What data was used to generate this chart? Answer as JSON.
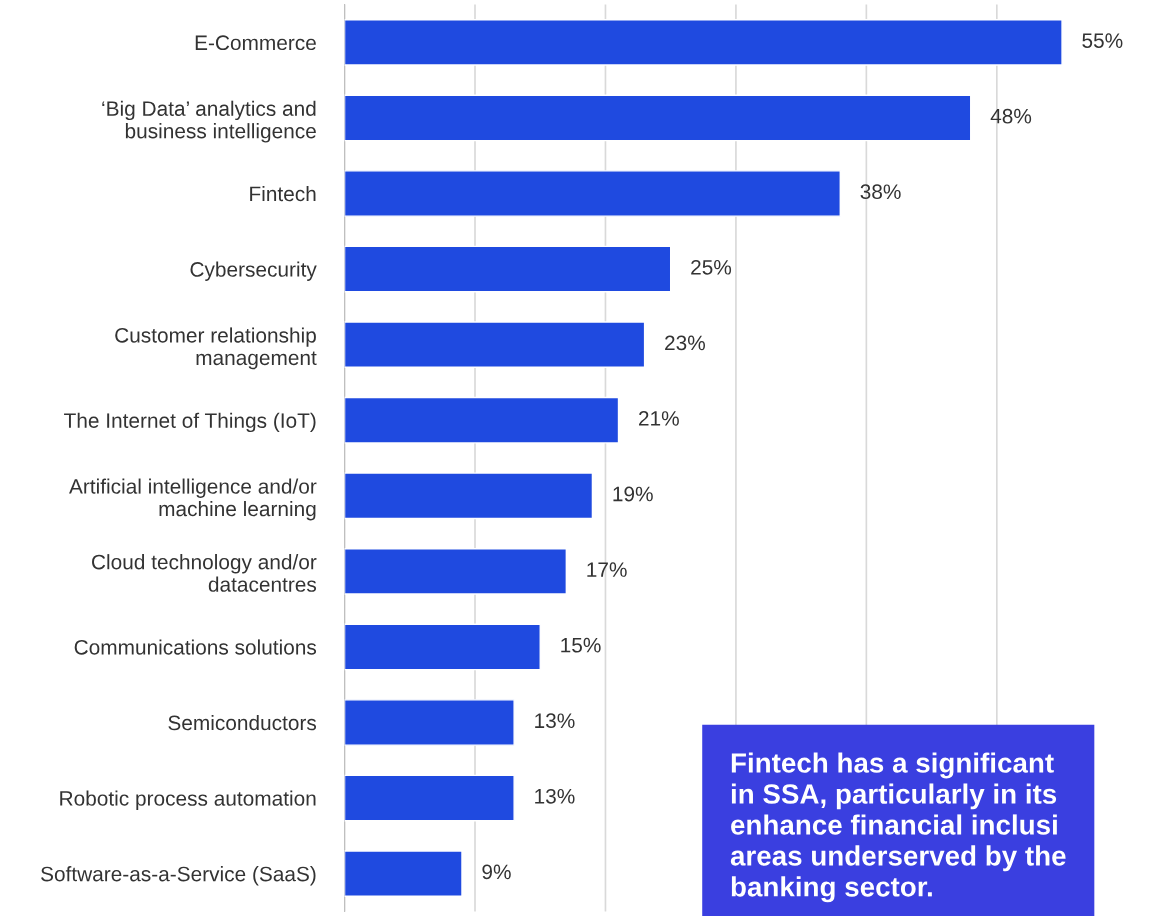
{
  "chart_data": {
    "type": "bar",
    "orientation": "horizontal",
    "categories": [
      "E-Commerce",
      "‘Big Data’ analytics and\nbusiness intelligence",
      "Fintech",
      "Cybersecurity",
      "Customer relationship\nmanagement",
      "The Internet of Things (IoT)",
      "Artificial intelligence and/or\nmachine learning",
      "Cloud technology and/or\ndatacentres",
      "Communications solutions",
      "Semiconductors",
      "Robotic process automation",
      "Software-as-a-Service (SaaS)"
    ],
    "values": [
      55,
      48,
      38,
      25,
      23,
      21,
      19,
      17,
      15,
      13,
      13,
      9
    ],
    "value_labels": [
      "55%",
      "48%",
      "38%",
      "25%",
      "23%",
      "21%",
      "19%",
      "17%",
      "15%",
      "13%",
      "13%",
      "9%"
    ],
    "color": "#1f4ae0",
    "xticks": [
      {
        "value": 0,
        "label": null
      },
      {
        "value": 10,
        "label": null
      },
      {
        "value": 20,
        "label": null
      },
      {
        "value": 30,
        "label": null
      },
      {
        "value": 40,
        "label": null
      },
      {
        "value": 50,
        "label": null
      }
    ],
    "grid": "x",
    "annotations": [
      "Fintech has a significant\nin SSA, particularly in its\nenhance financial inclusi\nareas underserved by the\nbanking sector."
    ]
  }
}
